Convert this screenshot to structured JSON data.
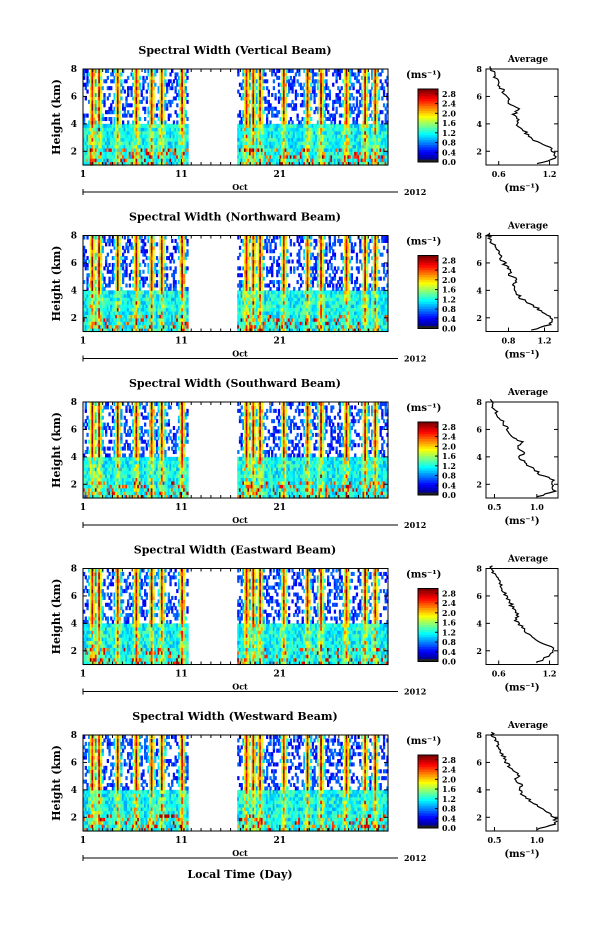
{
  "xlabel": "Local Time (Day)",
  "chart_data": [
    {
      "type": "heatmap",
      "title": "Spectral Width (Vertical Beam)",
      "xlabel": "",
      "ylabel": "Height (km)",
      "x_ticks": [
        "1",
        "11",
        "21"
      ],
      "x_range": [
        1,
        32
      ],
      "month_label": "Oct",
      "year_label": "2012",
      "y_ticks": [
        "2",
        "4",
        "6",
        "8"
      ],
      "y_range": [
        1,
        8
      ],
      "data_gap_days": [
        11.7,
        16.7
      ],
      "colorbar": {
        "unit": "(ms⁻¹)",
        "ticks": [
          "0.0",
          "0.4",
          "0.8",
          "1.2",
          "1.6",
          "2.0",
          "2.4",
          "2.8"
        ],
        "range": [
          0.0,
          3.0
        ]
      },
      "profile": {
        "title": "Average",
        "xlabel": "(ms⁻¹)",
        "x_ticks": [
          "0.6",
          "1.2"
        ],
        "x_range": [
          0.45,
          1.3
        ],
        "y_ticks": [
          "2",
          "4",
          "6",
          "8"
        ],
        "y_range": [
          1,
          8
        ],
        "heights": [
          1.1,
          1.5,
          1.9,
          2.3,
          2.7,
          3.1,
          3.5,
          3.9,
          4.3,
          4.7,
          5.1,
          5.5,
          5.9,
          6.3,
          6.7,
          7.1,
          7.5,
          7.9
        ],
        "values": [
          1.05,
          1.28,
          1.25,
          1.2,
          1.05,
          0.95,
          0.9,
          0.8,
          0.82,
          0.78,
          0.85,
          0.72,
          0.7,
          0.66,
          0.62,
          0.58,
          0.55,
          0.52
        ]
      }
    },
    {
      "type": "heatmap",
      "title": "Spectral Width (Northward Beam)",
      "xlabel": "",
      "ylabel": "Height (km)",
      "x_ticks": [
        "1",
        "11",
        "21"
      ],
      "x_range": [
        1,
        32
      ],
      "month_label": "Oct",
      "year_label": "2012",
      "y_ticks": [
        "2",
        "4",
        "6",
        "8"
      ],
      "y_range": [
        1,
        8
      ],
      "data_gap_days": [
        11.7,
        16.7
      ],
      "colorbar": {
        "unit": "(ms⁻¹)",
        "ticks": [
          "0.0",
          "0.4",
          "0.8",
          "1.2",
          "1.6",
          "2.0",
          "2.4",
          "2.8"
        ],
        "range": [
          0.0,
          3.0
        ]
      },
      "profile": {
        "title": "Average",
        "xlabel": "(ms⁻¹)",
        "x_ticks": [
          "0.8",
          "1.2"
        ],
        "x_range": [
          0.55,
          1.35
        ],
        "y_ticks": [
          "2",
          "4",
          "6",
          "8"
        ],
        "y_range": [
          1,
          8
        ],
        "heights": [
          1.1,
          1.5,
          1.9,
          2.3,
          2.7,
          3.1,
          3.5,
          3.9,
          4.3,
          4.7,
          5.1,
          5.5,
          5.9,
          6.3,
          6.7,
          7.1,
          7.5,
          7.9
        ],
        "values": [
          1.05,
          1.25,
          1.3,
          1.2,
          1.12,
          1.02,
          0.92,
          0.88,
          0.85,
          0.9,
          0.82,
          0.8,
          0.76,
          0.72,
          0.7,
          0.66,
          0.62,
          0.58
        ]
      }
    },
    {
      "type": "heatmap",
      "title": "Spectral Width (Southward Beam)",
      "xlabel": "",
      "ylabel": "Height (km)",
      "x_ticks": [
        "1",
        "11",
        "21"
      ],
      "x_range": [
        1,
        32
      ],
      "month_label": "Oct",
      "year_label": "2012",
      "y_ticks": [
        "2",
        "4",
        "6",
        "8"
      ],
      "y_range": [
        1,
        8
      ],
      "data_gap_days": [
        11.7,
        16.7
      ],
      "colorbar": {
        "unit": "(ms⁻¹)",
        "ticks": [
          "0.0",
          "0.4",
          "0.8",
          "1.2",
          "1.6",
          "2.0",
          "2.4",
          "2.8"
        ],
        "range": [
          0.0,
          3.0
        ]
      },
      "profile": {
        "title": "Average",
        "xlabel": "(ms⁻¹)",
        "x_ticks": [
          "0.5",
          "1.0"
        ],
        "x_range": [
          0.4,
          1.25
        ],
        "y_ticks": [
          "2",
          "4",
          "6",
          "8"
        ],
        "y_range": [
          1,
          8
        ],
        "heights": [
          1.1,
          1.5,
          1.9,
          2.3,
          2.7,
          3.1,
          3.5,
          3.9,
          4.3,
          4.7,
          5.1,
          5.5,
          5.9,
          6.3,
          6.7,
          7.1,
          7.5,
          7.9
        ],
        "values": [
          1.0,
          1.22,
          1.18,
          1.2,
          1.05,
          0.95,
          0.88,
          0.8,
          0.84,
          0.76,
          0.82,
          0.7,
          0.66,
          0.62,
          0.58,
          0.54,
          0.5,
          0.47
        ]
      }
    },
    {
      "type": "heatmap",
      "title": "Spectral Width (Eastward Beam)",
      "xlabel": "",
      "ylabel": "Height (km)",
      "x_ticks": [
        "1",
        "11",
        "21"
      ],
      "x_range": [
        1,
        32
      ],
      "month_label": "Oct",
      "year_label": "2012",
      "y_ticks": [
        "2",
        "4",
        "6",
        "8"
      ],
      "y_range": [
        1,
        8
      ],
      "data_gap_days": [
        11.7,
        16.7
      ],
      "colorbar": {
        "unit": "(ms⁻¹)",
        "ticks": [
          "0.0",
          "0.4",
          "0.8",
          "1.2",
          "1.6",
          "2.0",
          "2.4",
          "2.8"
        ],
        "range": [
          0.0,
          3.0
        ]
      },
      "profile": {
        "title": "Average",
        "xlabel": "(ms⁻¹)",
        "x_ticks": [
          "0.6",
          "1.2"
        ],
        "x_range": [
          0.45,
          1.3
        ],
        "y_ticks": [
          "2",
          "4",
          "6",
          "8"
        ],
        "y_range": [
          1,
          8
        ],
        "heights": [
          1.1,
          1.5,
          1.9,
          2.3,
          2.7,
          3.1,
          3.5,
          3.9,
          4.3,
          4.7,
          5.1,
          5.5,
          5.9,
          6.3,
          6.7,
          7.1,
          7.5,
          7.9
        ],
        "values": [
          1.05,
          1.15,
          1.25,
          1.22,
          1.08,
          0.98,
          0.9,
          0.85,
          0.8,
          0.82,
          0.76,
          0.74,
          0.7,
          0.66,
          0.63,
          0.6,
          0.56,
          0.52
        ]
      }
    },
    {
      "type": "heatmap",
      "title": "Spectral Width (Westward Beam)",
      "xlabel": "",
      "ylabel": "Height (km)",
      "x_ticks": [
        "1",
        "11",
        "21"
      ],
      "x_range": [
        1,
        32
      ],
      "month_label": "Oct",
      "year_label": "2012",
      "y_ticks": [
        "2",
        "4",
        "6",
        "8"
      ],
      "y_range": [
        1,
        8
      ],
      "data_gap_days": [
        11.7,
        16.7
      ],
      "colorbar": {
        "unit": "(ms⁻¹)",
        "ticks": [
          "0.0",
          "0.4",
          "0.8",
          "1.2",
          "1.6",
          "2.0",
          "2.4",
          "2.8"
        ],
        "range": [
          0.0,
          3.0
        ]
      },
      "profile": {
        "title": "Average",
        "xlabel": "(ms⁻¹)",
        "x_ticks": [
          "0.5",
          "1.0"
        ],
        "x_range": [
          0.4,
          1.25
        ],
        "y_ticks": [
          "2",
          "4",
          "6",
          "8"
        ],
        "y_range": [
          1,
          8
        ],
        "heights": [
          1.1,
          1.5,
          1.9,
          2.3,
          2.7,
          3.1,
          3.5,
          3.9,
          4.3,
          4.7,
          5.1,
          5.5,
          5.9,
          6.3,
          6.7,
          7.1,
          7.5,
          7.9
        ],
        "values": [
          1.0,
          1.2,
          1.22,
          1.15,
          1.05,
          0.95,
          0.86,
          0.8,
          0.82,
          0.75,
          0.78,
          0.7,
          0.65,
          0.62,
          0.58,
          0.55,
          0.52,
          0.48
        ]
      }
    }
  ]
}
